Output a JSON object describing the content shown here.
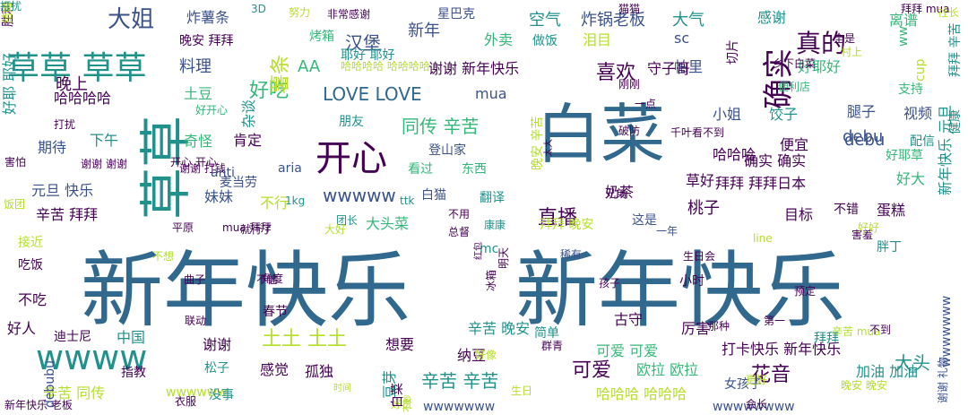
{
  "palette": {
    "background": "#ffffff",
    "c_purple": "#440154",
    "c_indigo": "#3b528b",
    "c_blue": "#31688e",
    "c_teal": "#21918c",
    "c_sea": "#35b779",
    "c_green": "#6ece58",
    "c_lime": "#b5de2b",
    "c_yellow": "#c8d61a"
  },
  "words": [
    {
      "text": "新年快乐",
      "size": 92,
      "color": "c_blue"
    },
    {
      "text": "新年快乐",
      "size": 92,
      "color": "c_blue"
    },
    {
      "text": "白菜",
      "size": 72,
      "color": "c_blue"
    },
    {
      "text": "草草",
      "size": 58,
      "color": "c_teal",
      "rotate": true
    },
    {
      "text": "开心",
      "size": 40,
      "color": "c_purple"
    },
    {
      "text": "草草 草草",
      "size": 36,
      "color": "c_teal"
    },
    {
      "text": "wwww",
      "size": 38,
      "color": "c_teal"
    },
    {
      "text": "确实",
      "size": 34,
      "color": "c_purple",
      "rotate": true
    },
    {
      "text": "大姐",
      "size": 26,
      "color": "c_indigo"
    },
    {
      "text": "真的",
      "size": 28,
      "color": "c_purple"
    },
    {
      "text": "喜欢",
      "size": 22,
      "color": "c_purple"
    },
    {
      "text": "好吃",
      "size": 22,
      "color": "c_sea"
    },
    {
      "text": "LOVE LOVE",
      "size": 20,
      "color": "c_blue"
    },
    {
      "text": "汉堡",
      "size": 20,
      "color": "c_indigo"
    },
    {
      "text": "薯条",
      "size": 22,
      "color": "c_lime",
      "rotate": true
    },
    {
      "text": "同传 辛苦",
      "size": 20,
      "color": "c_sea"
    },
    {
      "text": "花音",
      "size": 22,
      "color": "c_purple"
    },
    {
      "text": "可爱",
      "size": 22,
      "color": "c_purple"
    },
    {
      "text": "直播",
      "size": 22,
      "color": "c_purple"
    },
    {
      "text": "土土 土土",
      "size": 22,
      "color": "c_lime"
    },
    {
      "text": "大头",
      "size": 20,
      "color": "c_teal"
    },
    {
      "text": "辛苦 辛苦",
      "size": 20,
      "color": "c_teal"
    },
    {
      "text": "wwwww",
      "size": 20,
      "color": "c_indigo"
    },
    {
      "text": "debu",
      "size": 18,
      "color": "c_indigo"
    },
    {
      "text": "新年",
      "size": 18,
      "color": "c_indigo"
    },
    {
      "text": "星巴克",
      "size": 14,
      "color": "c_indigo"
    },
    {
      "text": "空气",
      "size": 18,
      "color": "c_teal"
    },
    {
      "text": "炸锅老板",
      "size": 18,
      "color": "c_indigo"
    },
    {
      "text": "大气",
      "size": 18,
      "color": "c_teal"
    },
    {
      "text": "感谢",
      "size": 16,
      "color": "c_teal"
    },
    {
      "text": "离谱",
      "size": 16,
      "color": "c_sea"
    },
    {
      "text": "炸薯条",
      "size": 16,
      "color": "c_indigo"
    },
    {
      "text": "非常感谢",
      "size": 12,
      "color": "c_purple"
    },
    {
      "text": "晚安 拜拜",
      "size": 14,
      "color": "c_purple"
    },
    {
      "text": "烤箱",
      "size": 14,
      "color": "c_sea"
    },
    {
      "text": "外卖",
      "size": 16,
      "color": "c_sea"
    },
    {
      "text": "做饭",
      "size": 14,
      "color": "c_teal"
    },
    {
      "text": "泪目",
      "size": 16,
      "color": "c_lime"
    },
    {
      "text": "sc",
      "size": 16,
      "color": "c_indigo"
    },
    {
      "text": "帕里",
      "size": 16,
      "color": "c_indigo"
    },
    {
      "text": "晚上",
      "size": 18,
      "color": "c_purple"
    },
    {
      "text": "料理",
      "size": 18,
      "color": "c_indigo"
    },
    {
      "text": "AA",
      "size": 18,
      "color": "c_sea"
    },
    {
      "text": "耶好 耶好",
      "size": 14,
      "color": "c_teal"
    },
    {
      "text": "谢谢 新年快乐",
      "size": 16,
      "color": "c_purple"
    },
    {
      "text": "守子哥",
      "size": 16,
      "color": "c_purple"
    },
    {
      "text": "好耶好",
      "size": 16,
      "color": "c_sea"
    },
    {
      "text": "mua",
      "size": 16,
      "color": "c_indigo"
    },
    {
      "text": "哈哈哈哈",
      "size": 16,
      "color": "c_purple"
    },
    {
      "text": "土豆",
      "size": 16,
      "color": "c_sea"
    },
    {
      "text": "好开心",
      "size": 12,
      "color": "c_sea"
    },
    {
      "text": "小姐",
      "size": 16,
      "color": "c_indigo"
    },
    {
      "text": "饺子",
      "size": 16,
      "color": "c_teal"
    },
    {
      "text": "腿子",
      "size": 16,
      "color": "c_indigo"
    },
    {
      "text": "视频",
      "size": 16,
      "color": "c_indigo"
    },
    {
      "text": "朋友",
      "size": 14,
      "color": "c_teal"
    },
    {
      "text": "奇怪",
      "size": 16,
      "color": "c_sea"
    },
    {
      "text": "肯定",
      "size": 16,
      "color": "c_purple"
    },
    {
      "text": "期待",
      "size": 16,
      "color": "c_indigo"
    },
    {
      "text": "下午",
      "size": 16,
      "color": "c_teal"
    },
    {
      "text": "便宜",
      "size": 16,
      "color": "c_purple"
    },
    {
      "text": "debu",
      "size": 18,
      "color": "c_indigo"
    },
    {
      "text": "哈哈哈",
      "size": 16,
      "color": "c_purple"
    },
    {
      "text": "确实 确实",
      "size": 16,
      "color": "c_purple"
    },
    {
      "text": "登山家",
      "size": 14,
      "color": "c_indigo"
    },
    {
      "text": "看过",
      "size": 14,
      "color": "c_sea"
    },
    {
      "text": "东西",
      "size": 14,
      "color": "c_sea"
    },
    {
      "text": "元旦 快乐",
      "size": 16,
      "color": "c_indigo"
    },
    {
      "text": "妹妹",
      "size": 16,
      "color": "c_indigo"
    },
    {
      "text": "aria",
      "size": 14,
      "color": "c_indigo"
    },
    {
      "text": "白猫",
      "size": 14,
      "color": "c_indigo"
    },
    {
      "text": "翻译",
      "size": 14,
      "color": "c_teal"
    },
    {
      "text": "奶茶",
      "size": 16,
      "color": "c_purple"
    },
    {
      "text": "草好",
      "size": 16,
      "color": "c_purple"
    },
    {
      "text": "拜拜 拜拜日本",
      "size": 16,
      "color": "c_purple"
    },
    {
      "text": "好大",
      "size": 16,
      "color": "c_sea"
    },
    {
      "text": "辛苦 拜拜",
      "size": 16,
      "color": "c_purple"
    },
    {
      "text": "不行",
      "size": 16,
      "color": "c_lime"
    },
    {
      "text": "大头菜",
      "size": 16,
      "color": "c_sea"
    },
    {
      "text": "桃子",
      "size": 18,
      "color": "c_purple"
    },
    {
      "text": "这是",
      "size": 14,
      "color": "c_indigo"
    },
    {
      "text": "目标",
      "size": 16,
      "color": "c_purple"
    },
    {
      "text": "不错",
      "size": 14,
      "color": "c_purple"
    },
    {
      "text": "蛋糕",
      "size": 16,
      "color": "c_purple"
    },
    {
      "text": "康康",
      "size": 12,
      "color": "c_teal"
    },
    {
      "text": "拜拜 晚安",
      "size": 14,
      "color": "c_lime"
    },
    {
      "text": "mc",
      "size": 14,
      "color": "c_teal"
    },
    {
      "text": "接近",
      "size": 14,
      "color": "c_lime"
    },
    {
      "text": "吃饭",
      "size": 14,
      "color": "c_purple"
    },
    {
      "text": "稀有",
      "size": 12,
      "color": "c_indigo"
    },
    {
      "text": "古守",
      "size": 16,
      "color": "c_purple"
    },
    {
      "text": "不吃",
      "size": 16,
      "color": "c_purple"
    },
    {
      "text": "辛苦 晚安",
      "size": 16,
      "color": "c_teal"
    },
    {
      "text": "简单",
      "size": 14,
      "color": "c_teal"
    },
    {
      "text": "厉害",
      "size": 16,
      "color": "c_purple"
    },
    {
      "text": "想要",
      "size": 16,
      "color": "c_purple"
    },
    {
      "text": "可爱 可爱",
      "size": 16,
      "color": "c_sea"
    },
    {
      "text": "打卡快乐 新年快乐",
      "size": 16,
      "color": "c_purple"
    },
    {
      "text": "谢谢",
      "size": 16,
      "color": "c_purple"
    },
    {
      "text": "中国",
      "size": 16,
      "color": "c_teal"
    },
    {
      "text": "好人",
      "size": 16,
      "color": "c_purple"
    },
    {
      "text": "迪士尼",
      "size": 14,
      "color": "c_purple"
    },
    {
      "text": "感觉",
      "size": 16,
      "color": "c_purple"
    },
    {
      "text": "孤独",
      "size": 16,
      "color": "c_purple"
    },
    {
      "text": "纳豆",
      "size": 16,
      "color": "c_purple"
    },
    {
      "text": "欧拉 欧拉",
      "size": 16,
      "color": "c_sea"
    },
    {
      "text": "松子",
      "size": 14,
      "color": "c_teal"
    },
    {
      "text": "wwwwww",
      "size": 14,
      "color": "c_lime"
    },
    {
      "text": "辛苦 同传",
      "size": 16,
      "color": "c_lime"
    },
    {
      "text": "哈哈哈 哈哈哈",
      "size": 16,
      "color": "c_lime"
    },
    {
      "text": "加油 加油",
      "size": 16,
      "color": "c_teal"
    },
    {
      "text": "女孩子",
      "size": 14,
      "color": "c_indigo"
    },
    {
      "text": "wwwwwww",
      "size": 14,
      "color": "c_indigo"
    },
    {
      "text": "新年快乐 老板",
      "size": 12,
      "color": "c_purple"
    },
    {
      "text": "联动",
      "size": 12,
      "color": "c_purple"
    },
    {
      "text": "春节",
      "size": 14,
      "color": "c_purple"
    },
    {
      "text": "没事",
      "size": 14,
      "color": "c_teal"
    },
    {
      "text": "wwwwwwww",
      "size": 14,
      "color": "c_indigo"
    },
    {
      "text": "会长",
      "size": 12,
      "color": "c_purple"
    },
    {
      "text": "害怕",
      "size": 12,
      "color": "c_purple"
    },
    {
      "text": "开心 开心",
      "size": 12,
      "color": "c_purple"
    },
    {
      "text": "打扰",
      "size": 12,
      "color": "c_purple"
    },
    {
      "text": "谢谢 谢谢",
      "size": 12,
      "color": "c_purple"
    },
    {
      "text": "谢谢 打钱",
      "size": 12,
      "color": "c_purple"
    },
    {
      "text": "mua 拜拜",
      "size": 12,
      "color": "c_purple"
    },
    {
      "text": "平原",
      "size": 12,
      "color": "c_purple"
    },
    {
      "text": "就行了",
      "size": 12,
      "color": "c_purple"
    },
    {
      "text": "角度",
      "size": 12,
      "color": "c_purple"
    },
    {
      "text": "曲子",
      "size": 12,
      "color": "c_purple"
    },
    {
      "text": "不信",
      "size": 12,
      "color": "c_purple"
    },
    {
      "text": "1kg",
      "size": 12,
      "color": "c_teal"
    },
    {
      "text": "团长",
      "size": 12,
      "color": "c_teal"
    },
    {
      "text": "千叶",
      "size": 12,
      "color": "c_purple"
    },
    {
      "text": "看不到",
      "size": 12,
      "color": "c_purple"
    },
    {
      "text": "一年",
      "size": 12,
      "color": "c_indigo"
    },
    {
      "text": "小时",
      "size": 14,
      "color": "c_purple"
    },
    {
      "text": "孩子",
      "size": 12,
      "color": "c_purple"
    },
    {
      "text": "生日会",
      "size": 12,
      "color": "c_purple"
    },
    {
      "text": "胖丁",
      "size": 14,
      "color": "c_teal"
    },
    {
      "text": "害羞",
      "size": 12,
      "color": "c_purple"
    },
    {
      "text": "好好",
      "size": 12,
      "color": "c_lime"
    },
    {
      "text": "预定",
      "size": 12,
      "color": "c_purple"
    },
    {
      "text": "那种",
      "size": 12,
      "color": "c_purple"
    },
    {
      "text": "第一",
      "size": 12,
      "color": "c_purple"
    },
    {
      "text": "辛苦 mua",
      "size": 12,
      "color": "c_lime"
    },
    {
      "text": "不到",
      "size": 12,
      "color": "c_purple"
    },
    {
      "text": "晚安 晚安",
      "size": 12,
      "color": "c_lime"
    },
    {
      "text": "更好",
      "size": 12,
      "color": "c_lime"
    },
    {
      "text": "生日",
      "size": 12,
      "color": "c_lime"
    },
    {
      "text": "群青",
      "size": 12,
      "color": "c_purple"
    },
    {
      "text": "好像",
      "size": 12,
      "color": "c_lime"
    },
    {
      "text": "一点",
      "size": 12,
      "color": "c_purple"
    },
    {
      "text": "便利店",
      "size": 12,
      "color": "c_sea"
    },
    {
      "text": "乡下白菜",
      "size": 12,
      "color": "c_purple"
    },
    {
      "text": "支持",
      "size": 14,
      "color": "c_sea"
    },
    {
      "text": "村上",
      "size": 12,
      "color": "c_lime"
    },
    {
      "text": "全是",
      "size": 12,
      "color": "c_purple"
    },
    {
      "text": "拜拜 mua",
      "size": 12,
      "color": "c_purple"
    },
    {
      "text": "努力",
      "size": 12,
      "color": "c_lime"
    },
    {
      "text": "猫猫",
      "size": 12,
      "color": "c_purple"
    },
    {
      "text": "刚刚",
      "size": 12,
      "color": "c_purple"
    },
    {
      "text": "破防",
      "size": 12,
      "color": "c_purple"
    },
    {
      "text": "兄弟",
      "size": 12,
      "color": "c_purple"
    },
    {
      "text": "不用",
      "size": 12,
      "color": "c_purple"
    },
    {
      "text": "总督",
      "size": 12,
      "color": "c_purple"
    },
    {
      "text": "大好",
      "size": 12,
      "color": "c_lime"
    },
    {
      "text": "麦当劳",
      "size": 14,
      "color": "c_indigo"
    },
    {
      "text": "anti",
      "size": 14,
      "color": "c_indigo"
    },
    {
      "text": "3D",
      "size": 12,
      "color": "c_teal"
    },
    {
      "text": "ttk",
      "size": 12,
      "color": "c_teal"
    },
    {
      "text": "line",
      "size": 12,
      "color": "c_lime"
    },
    {
      "text": "好耶草",
      "size": 14,
      "color": "c_sea"
    },
    {
      "text": "配信",
      "size": 14,
      "color": "c_teal"
    },
    {
      "text": "哈哈哈哈 哈哈哈哈",
      "size": 12,
      "color": "c_lime"
    },
    {
      "text": "cup",
      "size": 14,
      "color": "c_lime",
      "rotate": true
    },
    {
      "text": "ww",
      "size": 14,
      "color": "c_sea",
      "rotate": true
    },
    {
      "text": "饭团",
      "size": 12,
      "color": "c_lime"
    },
    {
      "text": "衣服",
      "size": 12,
      "color": "c_purple"
    },
    {
      "text": "指教",
      "size": 14,
      "color": "c_purple"
    },
    {
      "text": "社长",
      "size": 12,
      "color": "c_lime"
    },
    {
      "text": "拜拜",
      "size": 14,
      "color": "c_teal"
    },
    {
      "text": "健康",
      "size": 14,
      "color": "c_teal",
      "rotate": true
    },
    {
      "text": "新年快乐 元旦",
      "size": 16,
      "color": "c_teal",
      "rotate": true
    },
    {
      "text": "wwwwwww",
      "size": 14,
      "color": "c_indigo",
      "rotate": true
    },
    {
      "text": "拜拜 辛苦",
      "size": 14,
      "color": "c_teal",
      "rotate": true
    },
    {
      "text": "谢谢 礼物",
      "size": 12,
      "color": "c_indigo",
      "rotate": true
    },
    {
      "text": "晚安 辛苦",
      "size": 14,
      "color": "c_lime",
      "rotate": true
    },
    {
      "text": "切片",
      "size": 14,
      "color": "c_purple",
      "rotate": true
    },
    {
      "text": "好耶 耶好",
      "size": 16,
      "color": "c_teal",
      "rotate": true
    },
    {
      "text": "debubu",
      "size": 14,
      "color": "c_indigo",
      "rotate": true
    },
    {
      "text": "杂谈",
      "size": 16,
      "color": "c_teal",
      "rotate": true
    },
    {
      "text": "冰箱",
      "size": 12,
      "color": "c_purple",
      "rotate": true
    },
    {
      "text": "明天",
      "size": 12,
      "color": "c_purple",
      "rotate": true
    },
    {
      "text": "红包",
      "size": 10,
      "color": "c_purple",
      "rotate": true
    },
    {
      "text": "太大",
      "size": 10,
      "color": "c_purple",
      "rotate": true
    },
    {
      "text": "不想",
      "size": 12,
      "color": "c_lime"
    },
    {
      "text": "不妙",
      "size": 10,
      "color": "c_lime",
      "rotate": true
    },
    {
      "text": "时间",
      "size": 10,
      "color": "c_lime"
    },
    {
      "text": "好贵",
      "size": 12,
      "color": "c_lime"
    },
    {
      "text": "豆芽",
      "size": 16,
      "color": "c_teal",
      "rotate": true
    },
    {
      "text": "白菜",
      "size": 14,
      "color": "c_purple",
      "rotate": true
    },
    {
      "text": "胜利",
      "size": 14,
      "color": "c_purple",
      "rotate": true
    },
    {
      "text": "结婚",
      "size": 12,
      "color": "c_lime",
      "rotate": true
    },
    {
      "text": "打扰",
      "size": 12,
      "color": "c_teal"
    }
  ]
}
